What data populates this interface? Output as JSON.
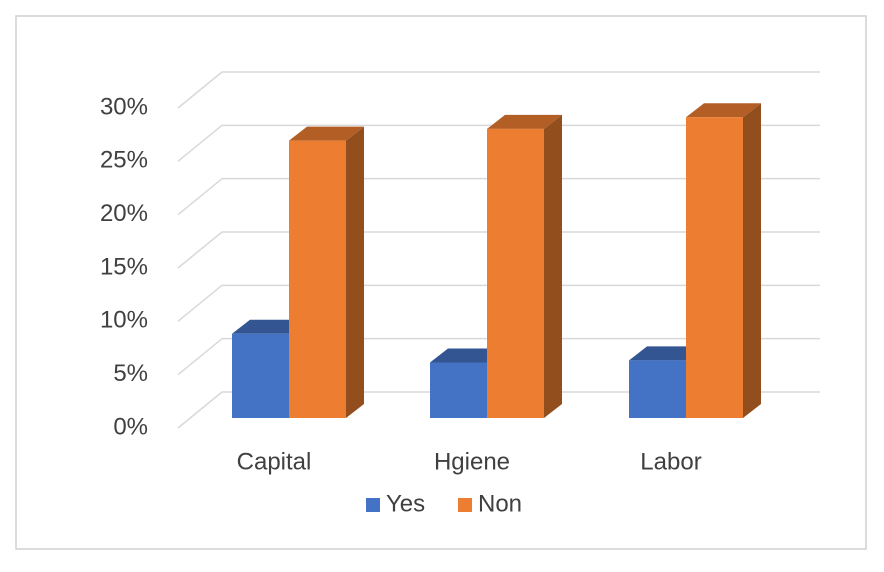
{
  "chart_data": {
    "type": "bar3d",
    "categories": [
      "Capital",
      "Hgiene",
      "Labor"
    ],
    "series": [
      {
        "name": "Yes",
        "color": "#4472c4",
        "values": [
          7.9,
          5.2,
          5.4
        ]
      },
      {
        "name": "Non",
        "color": "#ed7d31",
        "values": [
          26,
          27.1,
          28.2
        ]
      }
    ],
    "ylim": [
      0,
      30
    ],
    "yticks": [
      {
        "value": 0,
        "label": "0%"
      },
      {
        "value": 5,
        "label": "5%"
      },
      {
        "value": 10,
        "label": "10%"
      },
      {
        "value": 15,
        "label": "15%"
      },
      {
        "value": 20,
        "label": "20%"
      },
      {
        "value": 25,
        "label": "25%"
      },
      {
        "value": 30,
        "label": "30%"
      }
    ],
    "grid": true,
    "legend": "bottom"
  }
}
